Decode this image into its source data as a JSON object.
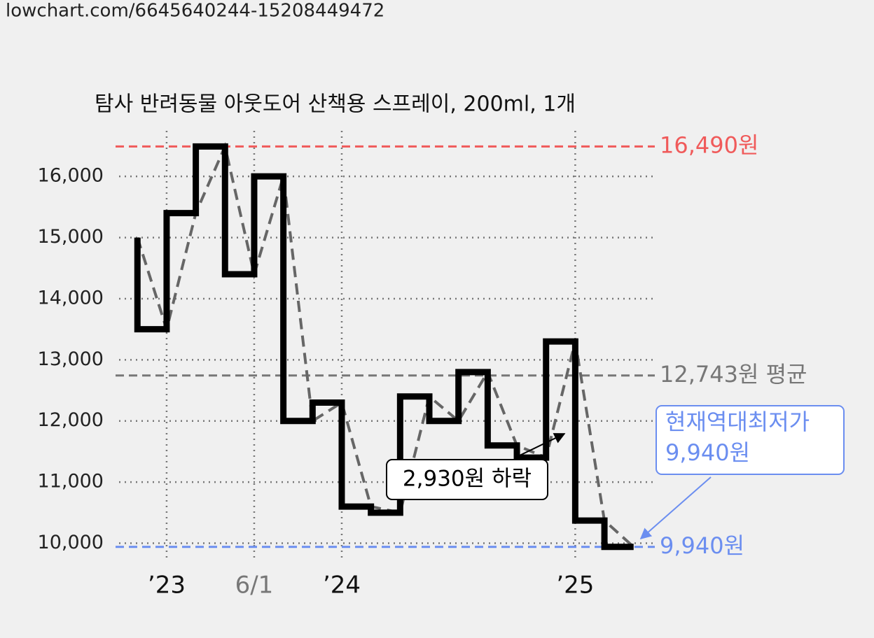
{
  "header": {
    "url": "lowchart.com/6645640244-15208449472"
  },
  "chart_data": {
    "type": "step-line",
    "title": "탐사 반려동물 아웃도어 산책용 스프레이, 200ml, 1개",
    "x": [
      -2,
      0,
      2,
      4,
      6,
      8,
      10,
      12,
      14,
      16,
      18,
      20,
      22,
      24,
      26,
      28,
      30,
      32
    ],
    "series": [
      {
        "color": "#000000",
        "trend_color": "#666666",
        "values": [
          15000,
          13500,
          15400,
          16490,
          14400,
          16000,
          12000,
          12300,
          10600,
          10500,
          12400,
          12000,
          12800,
          11600,
          11400,
          13300,
          10370,
          9940
        ]
      }
    ],
    "xlim": [
      -3.5,
      33.5
    ],
    "ylim": [
      9800,
      16700
    ],
    "xticks": [
      {
        "value": 0,
        "label": "’23"
      },
      {
        "value": 6,
        "label": "6/1"
      },
      {
        "value": 12,
        "label": "’24"
      },
      {
        "value": 28,
        "label": "’25"
      }
    ],
    "yticks": [
      {
        "value": 10000,
        "label": "10,000"
      },
      {
        "value": 11000,
        "label": "11,000"
      },
      {
        "value": 12000,
        "label": "12,000"
      },
      {
        "value": 13000,
        "label": "13,000"
      },
      {
        "value": 14000,
        "label": "14,000"
      },
      {
        "value": 15000,
        "label": "15,000"
      },
      {
        "value": 16000,
        "label": "16,000"
      }
    ],
    "grid": true,
    "reference_lines": [
      {
        "value": 16490,
        "label": "16,490원",
        "color": "#f05a5a"
      },
      {
        "value": 12743,
        "label": "12,743원 평균",
        "color": "#777777"
      },
      {
        "value": 9940,
        "label": "9,940원",
        "color": "#6b8ef0"
      }
    ],
    "annotations": [
      {
        "lines": [
          "2,930원 하락"
        ],
        "color": "#000000"
      },
      {
        "lines": [
          "현재역대최저가",
          "9,940원"
        ],
        "color": "#6b8ef0"
      }
    ]
  }
}
